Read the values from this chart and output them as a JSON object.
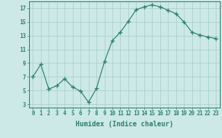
{
  "x": [
    0,
    1,
    2,
    3,
    4,
    5,
    6,
    7,
    8,
    9,
    10,
    11,
    12,
    13,
    14,
    15,
    16,
    17,
    18,
    19,
    20,
    21,
    22,
    23
  ],
  "y": [
    7.0,
    8.8,
    5.2,
    5.7,
    6.7,
    5.5,
    4.9,
    3.3,
    5.3,
    9.2,
    12.3,
    13.5,
    15.1,
    16.8,
    17.2,
    17.5,
    17.2,
    16.7,
    16.2,
    15.0,
    13.5,
    13.1,
    12.8,
    12.6
  ],
  "line_color": "#2e7d6e",
  "marker": "+",
  "marker_size": 4,
  "bg_color": "#cce9e7",
  "grid_color": "#aacfcc",
  "xlabel": "Humidex (Indice chaleur)",
  "ylabel_ticks": [
    3,
    5,
    7,
    9,
    11,
    13,
    15,
    17
  ],
  "xlim": [
    -0.5,
    23.5
  ],
  "ylim": [
    2.5,
    18.0
  ],
  "xtick_labels": [
    "0",
    "1",
    "2",
    "3",
    "4",
    "5",
    "6",
    "7",
    "8",
    "9",
    "10",
    "11",
    "12",
    "13",
    "14",
    "15",
    "16",
    "17",
    "18",
    "19",
    "20",
    "21",
    "22",
    "23"
  ],
  "tick_color": "#2e7d6e",
  "label_color": "#2e7d6e",
  "axis_color": "#2e7d6e",
  "tick_fontsize": 5.5,
  "xlabel_fontsize": 7.0
}
